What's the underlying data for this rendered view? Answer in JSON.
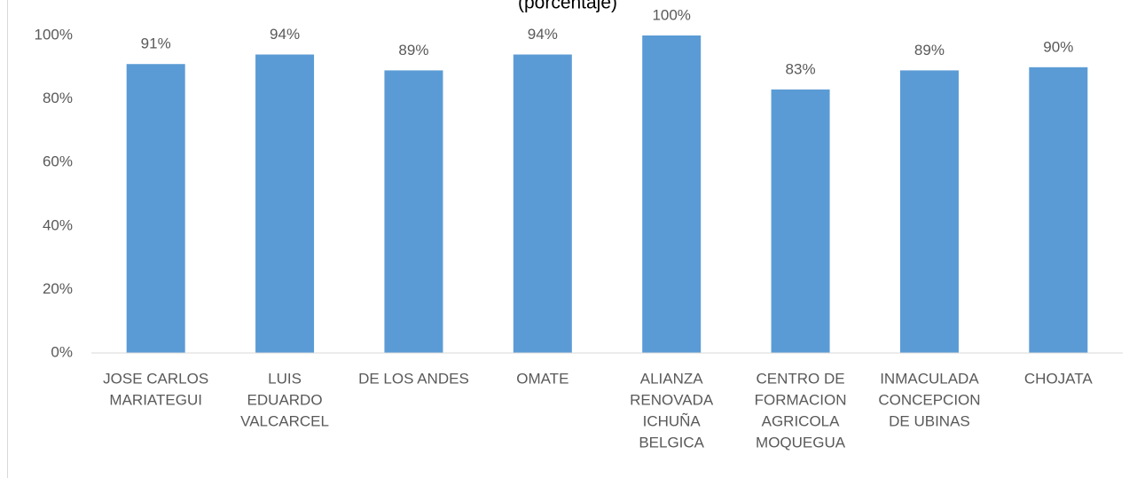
{
  "chart_data": {
    "type": "bar",
    "subtitle": "(porcentaje)",
    "categories": [
      [
        "JOSE CARLOS",
        "MARIATEGUI"
      ],
      [
        "LUIS",
        "EDUARDO",
        "VALCARCEL"
      ],
      [
        "DE LOS ANDES"
      ],
      [
        "OMATE"
      ],
      [
        "ALIANZA",
        "RENOVADA",
        "ICHUÑA",
        "BELGICA"
      ],
      [
        "CENTRO DE",
        "FORMACION",
        "AGRICOLA",
        "MOQUEGUA"
      ],
      [
        "INMACULADA",
        "CONCEPCION",
        "DE UBINAS"
      ],
      [
        "CHOJATA"
      ]
    ],
    "values": [
      91,
      94,
      89,
      94,
      100,
      83,
      89,
      90
    ],
    "value_labels": [
      "91%",
      "94%",
      "89%",
      "94%",
      "100%",
      "83%",
      "89%",
      "90%"
    ],
    "color": "#5b9bd5",
    "ylim": [
      0,
      100
    ],
    "yticks": [
      {
        "value": 0,
        "label": "0%"
      },
      {
        "value": 20,
        "label": "20%"
      },
      {
        "value": 40,
        "label": "40%"
      },
      {
        "value": 60,
        "label": "60%"
      },
      {
        "value": 80,
        "label": "80%"
      },
      {
        "value": 100,
        "label": "100%"
      }
    ],
    "grid": false
  }
}
